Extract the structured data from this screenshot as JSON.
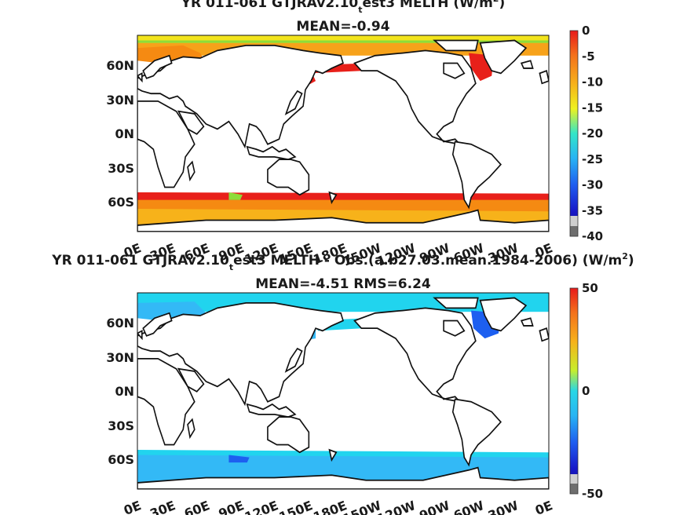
{
  "colors": {
    "red": "#e8201a",
    "orange": "#f58a12",
    "yellow": "#f2e41c",
    "cyan": "#21d4ee",
    "lightblue": "#33b9f6",
    "blue": "#1d5ff0",
    "navy": "#1c1c96",
    "gray": "#888888"
  },
  "chart_data": [
    {
      "type": "heatmap",
      "title_main": "YR 011-061 GTJRAv2.10",
      "title_sub": "t",
      "title_tail": "est3  MELTH (W/m",
      "title_sup": "2",
      "title_close": ")",
      "mean_label": "MEAN=-0.94",
      "xticks": [
        "0E",
        "30E",
        "60E",
        "90E",
        "120E",
        "150E",
        "180E",
        "150W",
        "120W",
        "90W",
        "60W",
        "30W",
        "0E"
      ],
      "yticks": [
        "60N",
        "30N",
        "0N",
        "30S",
        "60S"
      ],
      "colorbar_ticks": [
        "0",
        "-5",
        "-10",
        "-15",
        "-20",
        "-25",
        "-30",
        "-35",
        "-40"
      ],
      "colorbar_range": [
        -40,
        0
      ],
      "fields": [
        {
          "region": "Arctic Ocean and Nordic/Barents Seas",
          "value": -8
        },
        {
          "region": "Sea of Okhotsk",
          "value": -2
        },
        {
          "region": "Bering Sea",
          "value": -2
        },
        {
          "region": "Hudson Bay",
          "value": -6
        },
        {
          "region": "Labrador Sea",
          "value": -2
        },
        {
          "region": "Southern Ocean ice edge (50-60S)",
          "value": -2
        },
        {
          "region": "Southern Ocean near Antarctica",
          "value": -7
        }
      ]
    },
    {
      "type": "heatmap",
      "title_main": "YR 011-061 GTJRAv2.10",
      "title_sub": "t",
      "title_tail": "est3 MELTH - Obs.(a.b27.03.mean.1984-2006) (W/m",
      "title_sup": "2",
      "title_close": ")",
      "mean_label": "MEAN=-4.51 RMS=6.24",
      "xticks": [
        "0E",
        "30E",
        "60E",
        "90E",
        "120E",
        "150E",
        "180E",
        "150W",
        "120W",
        "90W",
        "60W",
        "30W",
        "0E"
      ],
      "yticks": [
        "60N",
        "30N",
        "0N",
        "30S",
        "60S"
      ],
      "colorbar_ticks": [
        "50",
        "0",
        "-50"
      ],
      "colorbar_range": [
        -50,
        50
      ],
      "fields": [
        {
          "region": "Arctic Ocean and Nordic/Barents Seas",
          "value": -8
        },
        {
          "region": "Sea of Okhotsk",
          "value": -9
        },
        {
          "region": "Hudson Bay",
          "value": -12
        },
        {
          "region": "Labrador Sea",
          "value": -14
        },
        {
          "region": "Southern Ocean ice edge (50-60S)",
          "value": -8
        },
        {
          "region": "Southern Ocean near Antarctica",
          "value": -6
        }
      ]
    }
  ]
}
